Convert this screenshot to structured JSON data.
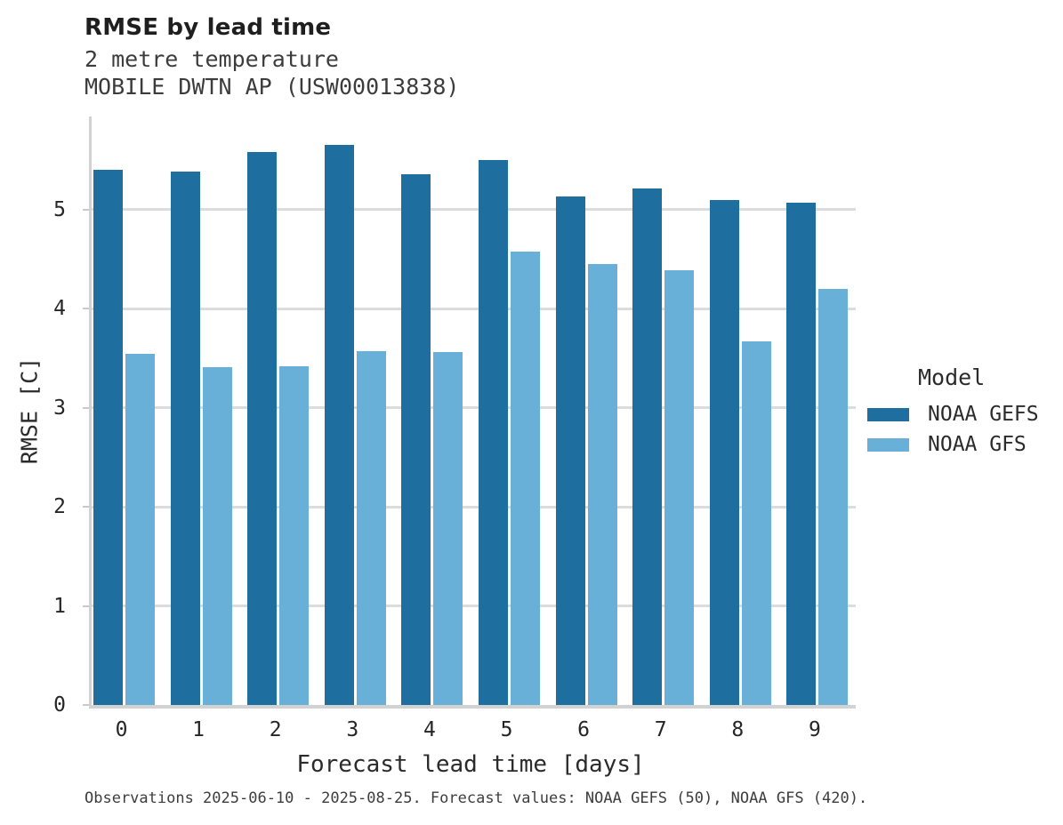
{
  "figure": {
    "footer": "Observations 2025-06-10 - 2025-08-25. Forecast values: NOAA GEFS (50), NOAA GFS (420)."
  },
  "chart_data": {
    "type": "bar",
    "title": "RMSE by lead time",
    "subtitle": "2 metre temperature",
    "station": "MOBILE DWTN AP (USW00013838)",
    "xlabel": "Forecast lead time [days]",
    "ylabel": "RMSE [C]",
    "categories": [
      "0",
      "1",
      "2",
      "3",
      "4",
      "5",
      "6",
      "7",
      "8",
      "9"
    ],
    "series": [
      {
        "name": "NOAA GEFS",
        "color": "#1e6e9f",
        "values": [
          5.4,
          5.38,
          5.58,
          5.65,
          5.36,
          5.5,
          5.13,
          5.21,
          5.1,
          5.07
        ]
      },
      {
        "name": "NOAA GFS",
        "color": "#69b0d8",
        "values": [
          3.54,
          3.41,
          3.42,
          3.57,
          3.56,
          4.58,
          4.45,
          4.39,
          3.67,
          4.2
        ]
      }
    ],
    "ylim": [
      0,
      5.94
    ],
    "yticks": [
      0,
      1,
      2,
      3,
      4,
      5
    ],
    "grid": "horizontal",
    "legend": {
      "title": "Model",
      "position": "right"
    },
    "style_colors": {
      "grid": "#dcdcdc",
      "spine": "#d2d2d2",
      "text": "#262626"
    }
  }
}
